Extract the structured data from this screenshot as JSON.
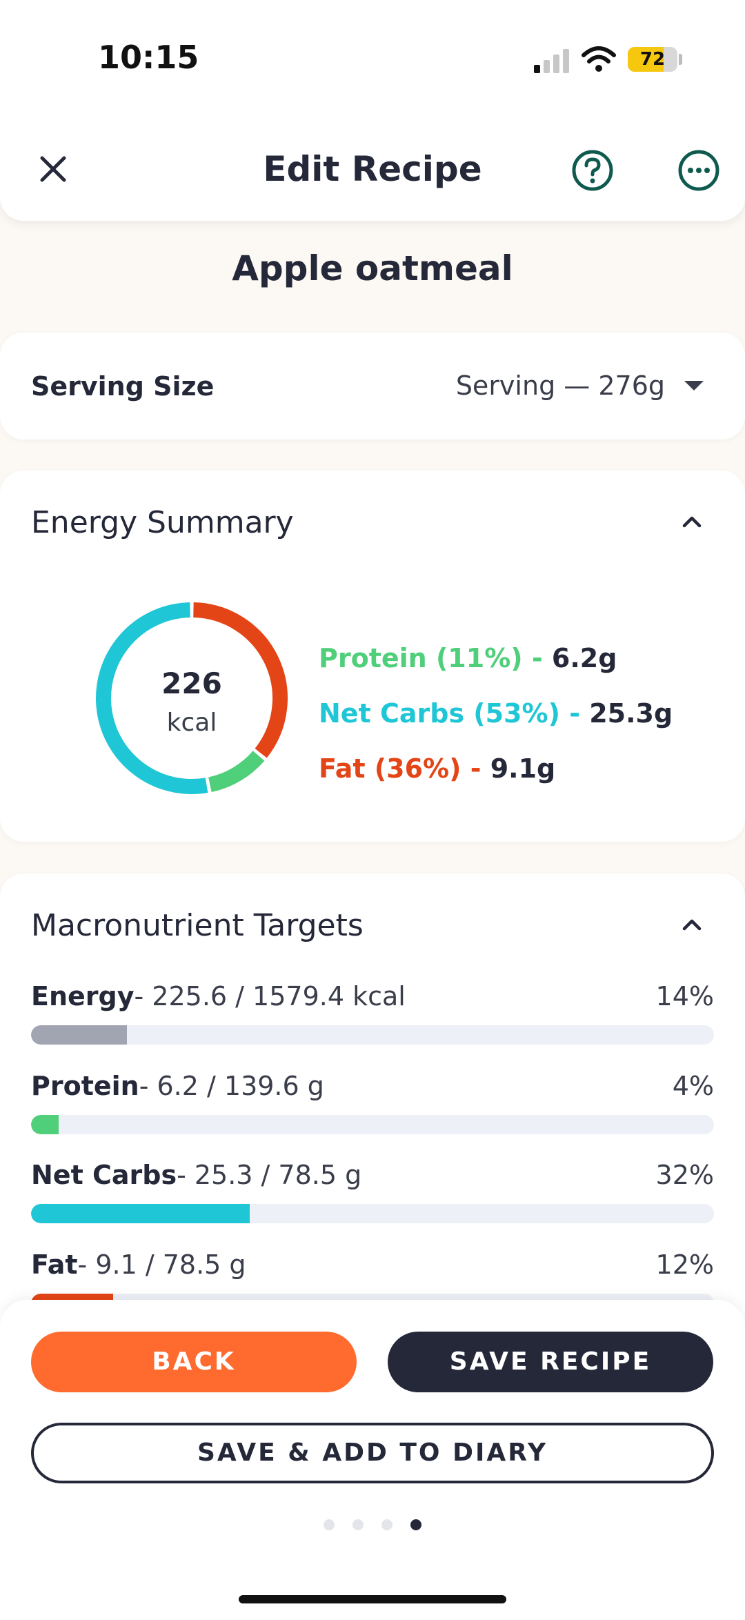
{
  "status_bar": {
    "time": "10:15",
    "battery": "72",
    "battery_level": 0.72
  },
  "header": {
    "title": "Edit Recipe",
    "close_icon": "close-icon",
    "help_icon": "help-circle-icon",
    "more_icon": "more-options-icon"
  },
  "recipe": {
    "name": "Apple oatmeal"
  },
  "serving": {
    "label": "Serving Size",
    "value": "Serving — 276g"
  },
  "energy_summary": {
    "title": "Energy Summary",
    "calories": "226",
    "unit": "kcal",
    "macros": [
      {
        "label": "Protein (11%) - ",
        "amount": "6.2g",
        "color": "#4fcf7a",
        "percent": 11
      },
      {
        "label": "Net Carbs (53%) - ",
        "amount": "25.3g",
        "color": "#1fc6d6",
        "percent": 53
      },
      {
        "label": "Fat (36%) - ",
        "amount": "9.1g",
        "color": "#e44516",
        "percent": 36
      }
    ]
  },
  "targets": {
    "title": "Macronutrient Targets",
    "rows": [
      {
        "name": "Energy",
        "detail": "- 225.6 / 1579.4 kcal",
        "percent_label": "14%",
        "fraction": 0.14,
        "color": "#a1a4b1"
      },
      {
        "name": "Protein",
        "detail": "- 6.2 / 139.6 g",
        "percent_label": "4%",
        "fraction": 0.04,
        "color": "#4fcf7a"
      },
      {
        "name": "Net Carbs",
        "detail": "- 25.3 / 78.5 g",
        "percent_label": "32%",
        "fraction": 0.32,
        "color": "#1fc6d6"
      },
      {
        "name": "Fat",
        "detail": "- 9.1 / 78.5 g",
        "percent_label": "12%",
        "fraction": 0.12,
        "color": "#e44516"
      }
    ]
  },
  "actions": {
    "back": "BACK",
    "save": "SAVE RECIPE",
    "save_add": "SAVE & ADD TO DIARY"
  },
  "pagination": {
    "count": 4,
    "active": 4
  }
}
